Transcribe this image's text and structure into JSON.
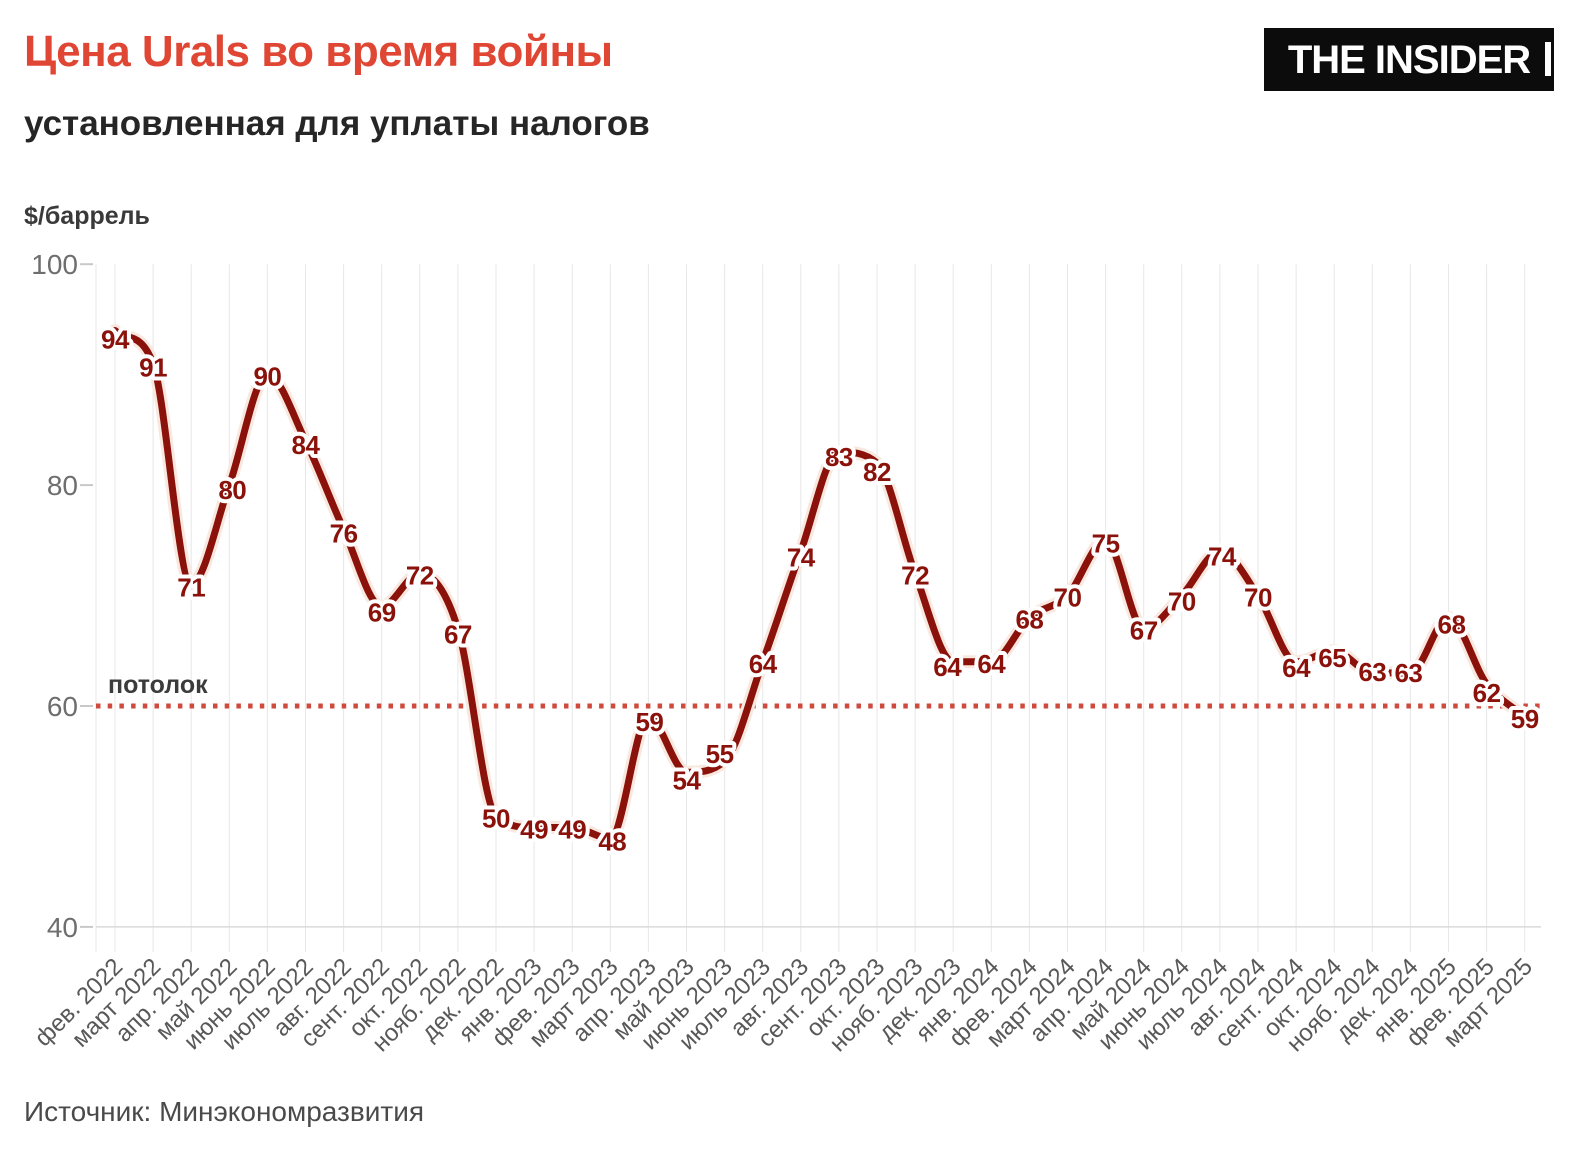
{
  "header": {
    "title": "Цена Urals во время войны",
    "subtitle": "установленная для уплаты налогов"
  },
  "logo": {
    "text": "THE INSIDER"
  },
  "source_label": "Источник: Минэкономразвития",
  "theme": {
    "title_color": "#e04634",
    "line_color": "#8b120b",
    "line_halo": "#f9e8df",
    "ceiling_color": "#cd4a3c",
    "grid_color": "#e7e7e7",
    "baseline_color": "#d9d9d9",
    "tick_color": "#c8c8c8",
    "logo_bg": "#0c0c0c"
  },
  "chart_data": {
    "type": "line",
    "title": "Цена Urals во время войны",
    "subtitle": "установленная для уплаты налогов",
    "ylabel": "$/баррель",
    "xlabel": "",
    "ylim": [
      40,
      100
    ],
    "yticks": [
      40,
      60,
      80,
      100
    ],
    "grid": "vertical",
    "legend": "none",
    "x": [
      "фев. 2022",
      "март 2022",
      "апр. 2022",
      "май 2022",
      "июнь 2022",
      "июль 2022",
      "авг. 2022",
      "сент. 2022",
      "окт. 2022",
      "нояб. 2022",
      "дек. 2022",
      "янв. 2023",
      "фев. 2023",
      "март 2023",
      "апр. 2023",
      "май 2023",
      "июнь 2023",
      "июль 2023",
      "авг. 2023",
      "сент. 2023",
      "окт. 2023",
      "нояб. 2023",
      "дек. 2023",
      "янв. 2024",
      "фев. 2024",
      "март 2024",
      "апр. 2024",
      "май 2024",
      "июнь 2024",
      "июль 2024",
      "авг. 2024",
      "сент. 2024",
      "окт. 2024",
      "нояб. 2024",
      "дек. 2024",
      "янв. 2025",
      "фев. 2025",
      "март 2025"
    ],
    "values": [
      94,
      91,
      71,
      80,
      90,
      84,
      76,
      69,
      72,
      67,
      50,
      49,
      49,
      48,
      59,
      54,
      55,
      64,
      74,
      83,
      82,
      72,
      64,
      64,
      68,
      70,
      75,
      67,
      70,
      74,
      70,
      64,
      65,
      63,
      63,
      68,
      62,
      59
    ],
    "ceiling": {
      "value": 60,
      "label": "потолок",
      "style": "dotted"
    },
    "label_nudges": {
      "0": [
        0,
        18
      ],
      "1": [
        0,
        13
      ],
      "2": [
        0,
        12
      ],
      "3": [
        3,
        14
      ],
      "5": [
        0,
        13
      ],
      "6": [
        0,
        13
      ],
      "7": [
        0,
        15
      ],
      "9": [
        0,
        15
      ],
      "13": [
        2,
        12
      ],
      "14": [
        1,
        14
      ],
      "15": [
        0,
        17
      ],
      "16": [
        -5,
        2
      ],
      "18": [
        0,
        15
      ],
      "19": [
        0,
        14
      ],
      "20": [
        0,
        18
      ],
      "22": [
        -6,
        14
      ],
      "26": [
        0,
        12
      ],
      "28": [
        0,
        15
      ],
      "29": [
        2,
        14
      ],
      "31": [
        0,
        15
      ],
      "32": [
        -2,
        16
      ],
      "33": [
        0,
        8
      ],
      "34": [
        -2,
        9
      ],
      "35": [
        3,
        16
      ],
      "36": [
        0,
        18
      ]
    }
  }
}
